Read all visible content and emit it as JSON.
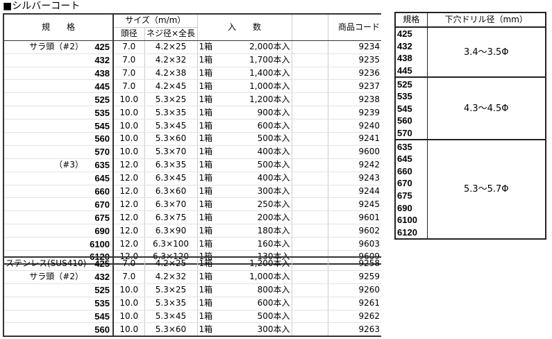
{
  "title": "■シルバーコート",
  "header": {
    "spec": "規　　格",
    "size": "サイズ（m/m）",
    "head": "頭径",
    "neji": "ネジ径×全長",
    "qty": "入　　数",
    "code": "商品コード"
  },
  "rows": [
    [
      "サラ頭（#2）",
      "425",
      "7.0",
      "4.2×25",
      "1箱",
      "2,000本入",
      "9234"
    ],
    [
      "",
      "432",
      "7.0",
      "4.2×32",
      "1箱",
      "1,700本入",
      "9235"
    ],
    [
      "",
      "438",
      "7.0",
      "4.2×38",
      "1箱",
      "1,400本入",
      "9236"
    ],
    [
      "",
      "445",
      "7.0",
      "4.2×45",
      "1箱",
      "1,000本入",
      "9237"
    ],
    [
      "",
      "525",
      "10.0",
      "5.3×25",
      "1箱",
      "1,200本入",
      "9238"
    ],
    [
      "",
      "535",
      "10.0",
      "5.3×35",
      "1箱",
      "900本入",
      "9239"
    ],
    [
      "",
      "545",
      "10.0",
      "5.3×45",
      "1箱",
      "600本入",
      "9240"
    ],
    [
      "",
      "560",
      "10.0",
      "5.3×60",
      "1箱",
      "500本入",
      "9241"
    ],
    [
      "",
      "570",
      "10.0",
      "5.3×70",
      "1箱",
      "400本入",
      "9600"
    ],
    [
      "（#3）",
      "635",
      "12.0",
      "6.3×35",
      "1箱",
      "500本入",
      "9242"
    ],
    [
      "",
      "645",
      "12.0",
      "6.3×45",
      "1箱",
      "400本入",
      "9243"
    ],
    [
      "",
      "660",
      "12.0",
      "6.3×60",
      "1箱",
      "300本入",
      "9244"
    ],
    [
      "",
      "670",
      "12.0",
      "6.3×70",
      "1箱",
      "250本入",
      "9245"
    ],
    [
      "",
      "675",
      "12.0",
      "6.3×75",
      "1箱",
      "200本入",
      "9601"
    ],
    [
      "",
      "690",
      "12.0",
      "6.3×90",
      "1箱",
      "180本入",
      "9602"
    ],
    [
      "",
      "6100",
      "12.0",
      "6.3×100",
      "1箱",
      "160本入",
      "9603"
    ],
    [
      "",
      "6120",
      "12.0",
      "6.3×120",
      "1箱",
      "130本入",
      "9609"
    ]
  ],
  "rows2": [
    [
      "ステンレス(SUS410)",
      "425",
      "7.0",
      "4.2×25",
      "1箱",
      "1,200本入",
      "9258"
    ],
    [
      "サラ頭（#2）",
      "432",
      "7.0",
      "4.2×32",
      "1箱",
      "1,000本入",
      "9259"
    ],
    [
      "",
      "525",
      "10.0",
      "5.3×25",
      "1箱",
      "800本入",
      "9260"
    ],
    [
      "",
      "535",
      "10.0",
      "5.3×35",
      "1箱",
      "600本入",
      "9261"
    ],
    [
      "",
      "545",
      "10.0",
      "5.3×45",
      "1箱",
      "500本入",
      "9262"
    ],
    [
      "",
      "560",
      "10.0",
      "5.3×60",
      "1箱",
      "300本入",
      "9263"
    ]
  ],
  "drill": {
    "spec_header": "規格",
    "dia_header": "下穴ドリル径（mm）",
    "groups": [
      {
        "specs": [
          "425",
          "432",
          "438",
          "445"
        ],
        "dia": "3.4～3.5Φ"
      },
      {
        "specs": [
          "525",
          "535",
          "545",
          "560",
          "570"
        ],
        "dia": "4.3～4.5Φ"
      },
      {
        "specs": [
          "635",
          "645",
          "660",
          "670",
          "675",
          "690",
          "6100",
          "6120"
        ],
        "dia": "5.3～5.7Φ"
      }
    ]
  }
}
